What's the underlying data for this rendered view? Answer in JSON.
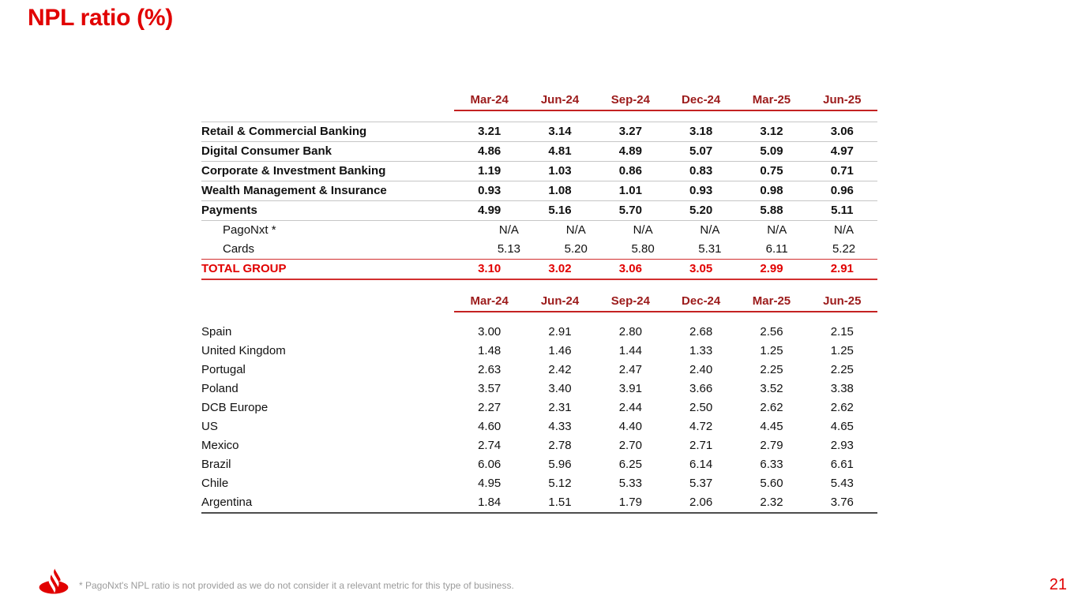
{
  "slide": {
    "title": "NPL ratio (%)",
    "footnote": "* PagoNxt's NPL ratio is not provided as we do not consider it a relevant metric for this type of business.",
    "page_number": "21",
    "logo": "santander-flame-icon"
  },
  "colors": {
    "accent_red": "#e10000",
    "column_header_red": "#9c1b1b",
    "header_underline_red": "#c42222",
    "total_line_red": "#d22f2f",
    "row_divider_gray": "#c6c6c6",
    "table_bottom_gray": "#4d4d4d",
    "footnote_gray": "#9b9b9b",
    "text_black": "#111111"
  },
  "tables": [
    {
      "id": "business-segments",
      "columns": [
        "Mar-24",
        "Jun-24",
        "Sep-24",
        "Dec-24",
        "Mar-25",
        "Jun-25"
      ],
      "rows": [
        {
          "label": "Retail & Commercial Banking",
          "style": "bold",
          "values": [
            "3.21",
            "3.14",
            "3.27",
            "3.18",
            "3.12",
            "3.06"
          ]
        },
        {
          "label": "Digital Consumer Bank",
          "style": "bold",
          "values": [
            "4.86",
            "4.81",
            "4.89",
            "5.07",
            "5.09",
            "4.97"
          ]
        },
        {
          "label": "Corporate & Investment Banking",
          "style": "bold",
          "values": [
            "1.19",
            "1.03",
            "0.86",
            "0.83",
            "0.75",
            "0.71"
          ]
        },
        {
          "label": "Wealth Management & Insurance",
          "style": "bold",
          "values": [
            "0.93",
            "1.08",
            "1.01",
            "0.93",
            "0.98",
            "0.96"
          ]
        },
        {
          "label": "Payments",
          "style": "bold",
          "values": [
            "4.99",
            "5.16",
            "5.70",
            "5.20",
            "5.88",
            "5.11"
          ]
        },
        {
          "label": "PagoNxt *",
          "style": "sub",
          "values": [
            "N/A",
            "N/A",
            "N/A",
            "N/A",
            "N/A",
            "N/A"
          ]
        },
        {
          "label": "Cards",
          "style": "sub",
          "values": [
            "5.13",
            "5.20",
            "5.80",
            "5.31",
            "6.11",
            "5.22"
          ]
        },
        {
          "label": "TOTAL GROUP",
          "style": "total",
          "values": [
            "3.10",
            "3.02",
            "3.06",
            "3.05",
            "2.99",
            "2.91"
          ]
        }
      ]
    },
    {
      "id": "countries",
      "columns": [
        "Mar-24",
        "Jun-24",
        "Sep-24",
        "Dec-24",
        "Mar-25",
        "Jun-25"
      ],
      "rows": [
        {
          "label": "Spain",
          "style": "plain",
          "values": [
            "3.00",
            "2.91",
            "2.80",
            "2.68",
            "2.56",
            "2.15"
          ]
        },
        {
          "label": "United Kingdom",
          "style": "plain",
          "values": [
            "1.48",
            "1.46",
            "1.44",
            "1.33",
            "1.25",
            "1.25"
          ]
        },
        {
          "label": "Portugal",
          "style": "plain",
          "values": [
            "2.63",
            "2.42",
            "2.47",
            "2.40",
            "2.25",
            "2.25"
          ]
        },
        {
          "label": "Poland",
          "style": "plain",
          "values": [
            "3.57",
            "3.40",
            "3.91",
            "3.66",
            "3.52",
            "3.38"
          ]
        },
        {
          "label": "DCB Europe",
          "style": "plain",
          "values": [
            "2.27",
            "2.31",
            "2.44",
            "2.50",
            "2.62",
            "2.62"
          ]
        },
        {
          "label": "US",
          "style": "plain",
          "values": [
            "4.60",
            "4.33",
            "4.40",
            "4.72",
            "4.45",
            "4.65"
          ]
        },
        {
          "label": "Mexico",
          "style": "plain",
          "values": [
            "2.74",
            "2.78",
            "2.70",
            "2.71",
            "2.79",
            "2.93"
          ]
        },
        {
          "label": "Brazil",
          "style": "plain",
          "values": [
            "6.06",
            "5.96",
            "6.25",
            "6.14",
            "6.33",
            "6.61"
          ]
        },
        {
          "label": "Chile",
          "style": "plain",
          "values": [
            "4.95",
            "5.12",
            "5.33",
            "5.37",
            "5.60",
            "5.43"
          ]
        },
        {
          "label": "Argentina",
          "style": "plain",
          "values": [
            "1.84",
            "1.51",
            "1.79",
            "2.06",
            "2.32",
            "3.76"
          ]
        }
      ]
    }
  ]
}
